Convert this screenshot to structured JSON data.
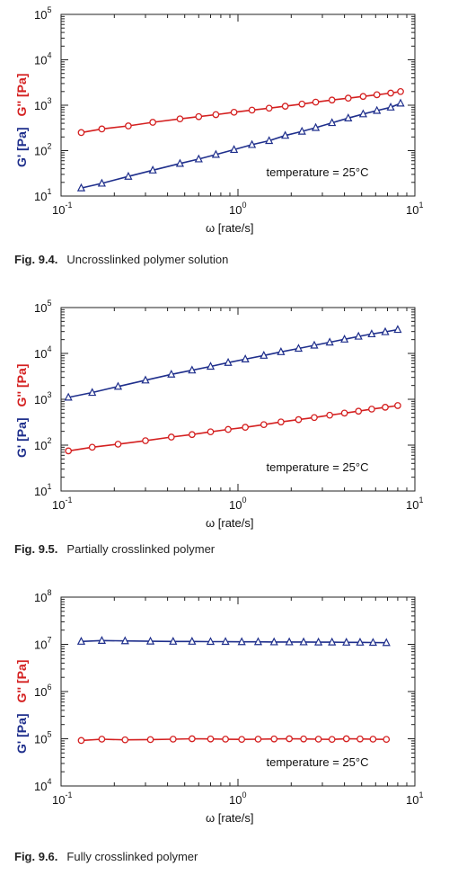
{
  "chart_data": [
    {
      "type": "line",
      "caption_label": "Fig. 9.4.",
      "caption_text": "Uncrosslinked polymer solution",
      "ylabel_g1": "G' [Pa]",
      "ylabel_g2": "G'' [Pa]",
      "xlabel": "ω  [rate/s]",
      "annotation": "temperature = 25°C",
      "x_scale": "log",
      "y_scale": "log",
      "xlim": [
        0.1,
        10
      ],
      "ylim": [
        10,
        100000
      ],
      "x_ticks": [
        {
          "base": "10",
          "exp": "-1"
        },
        {
          "base": "10",
          "exp": "0"
        },
        {
          "base": "10",
          "exp": "1"
        }
      ],
      "y_ticks": [
        {
          "base": "10",
          "exp": "1"
        },
        {
          "base": "10",
          "exp": "2"
        },
        {
          "base": "10",
          "exp": "3"
        },
        {
          "base": "10",
          "exp": "4"
        },
        {
          "base": "10",
          "exp": "5"
        }
      ],
      "series": [
        {
          "marker": "triangle",
          "color": "#1f2f8c",
          "x": [
            0.13,
            0.17,
            0.24,
            0.33,
            0.47,
            0.6,
            0.75,
            0.95,
            1.2,
            1.5,
            1.85,
            2.3,
            2.75,
            3.4,
            4.2,
            5.1,
            6.1,
            7.3,
            8.3
          ],
          "y": [
            15,
            19,
            27,
            37,
            52,
            65,
            82,
            105,
            135,
            165,
            215,
            265,
            320,
            410,
            520,
            640,
            760,
            900,
            1100
          ]
        },
        {
          "marker": "circle",
          "color": "#d42020",
          "x": [
            0.13,
            0.17,
            0.24,
            0.33,
            0.47,
            0.6,
            0.75,
            0.95,
            1.2,
            1.5,
            1.85,
            2.3,
            2.75,
            3.4,
            4.2,
            5.1,
            6.1,
            7.3,
            8.3
          ],
          "y": [
            250,
            300,
            350,
            420,
            500,
            560,
            620,
            700,
            780,
            860,
            950,
            1060,
            1170,
            1300,
            1430,
            1560,
            1700,
            1850,
            2000
          ]
        }
      ]
    },
    {
      "type": "line",
      "caption_label": "Fig. 9.5.",
      "caption_text": "Partially crosslinked polymer",
      "ylabel_g1": "G' [Pa]",
      "ylabel_g2": "G'' [Pa]",
      "xlabel": "ω  [rate/s]",
      "annotation": "temperature = 25°C",
      "x_scale": "log",
      "y_scale": "log",
      "xlim": [
        0.1,
        10
      ],
      "ylim": [
        10,
        100000
      ],
      "x_ticks": [
        {
          "base": "10",
          "exp": "-1"
        },
        {
          "base": "10",
          "exp": "0"
        },
        {
          "base": "10",
          "exp": "1"
        }
      ],
      "y_ticks": [
        {
          "base": "10",
          "exp": "1"
        },
        {
          "base": "10",
          "exp": "2"
        },
        {
          "base": "10",
          "exp": "3"
        },
        {
          "base": "10",
          "exp": "4"
        },
        {
          "base": "10",
          "exp": "5"
        }
      ],
      "series": [
        {
          "marker": "triangle",
          "color": "#1f2f8c",
          "x": [
            0.11,
            0.15,
            0.21,
            0.3,
            0.42,
            0.55,
            0.7,
            0.88,
            1.1,
            1.4,
            1.75,
            2.2,
            2.7,
            3.3,
            4.0,
            4.8,
            5.7,
            6.8,
            8.0
          ],
          "y": [
            1100,
            1400,
            1900,
            2600,
            3500,
            4300,
            5200,
            6300,
            7500,
            9000,
            10800,
            12800,
            15000,
            17500,
            20300,
            23500,
            26500,
            29500,
            33000
          ]
        },
        {
          "marker": "circle",
          "color": "#d42020",
          "x": [
            0.11,
            0.15,
            0.21,
            0.3,
            0.42,
            0.55,
            0.7,
            0.88,
            1.1,
            1.4,
            1.75,
            2.2,
            2.7,
            3.3,
            4.0,
            4.8,
            5.7,
            6.8,
            8.0
          ],
          "y": [
            75,
            90,
            105,
            125,
            150,
            170,
            195,
            220,
            245,
            280,
            320,
            360,
            400,
            450,
            500,
            550,
            610,
            670,
            730
          ]
        }
      ]
    },
    {
      "type": "line",
      "caption_label": "Fig. 9.6.",
      "caption_text": "Fully crosslinked polymer",
      "ylabel_g1": "G' [Pa]",
      "ylabel_g2": "G'' [Pa]",
      "xlabel": "ω  [rate/s]",
      "annotation": "temperature = 25°C",
      "x_scale": "log",
      "y_scale": "log",
      "xlim": [
        0.1,
        10
      ],
      "ylim": [
        10000,
        100000000
      ],
      "x_ticks": [
        {
          "base": "10",
          "exp": "-1"
        },
        {
          "base": "10",
          "exp": "0"
        },
        {
          "base": "10",
          "exp": "1"
        }
      ],
      "y_ticks": [
        {
          "base": "10",
          "exp": "4"
        },
        {
          "base": "10",
          "exp": "5"
        },
        {
          "base": "10",
          "exp": "6"
        },
        {
          "base": "10",
          "exp": "7"
        },
        {
          "base": "10",
          "exp": "8"
        }
      ],
      "series": [
        {
          "marker": "triangle",
          "color": "#1f2f8c",
          "x": [
            0.13,
            0.17,
            0.23,
            0.32,
            0.43,
            0.55,
            0.7,
            0.85,
            1.05,
            1.3,
            1.6,
            1.95,
            2.35,
            2.85,
            3.4,
            4.1,
            4.9,
            5.8,
            6.9
          ],
          "y": [
            11500000,
            12000000,
            11800000,
            11600000,
            11500000,
            11500000,
            11400000,
            11400000,
            11300000,
            11300000,
            11200000,
            11200000,
            11200000,
            11100000,
            11100000,
            11000000,
            11000000,
            10900000,
            10800000
          ]
        },
        {
          "marker": "circle",
          "color": "#d42020",
          "x": [
            0.13,
            0.17,
            0.23,
            0.32,
            0.43,
            0.55,
            0.7,
            0.85,
            1.05,
            1.3,
            1.6,
            1.95,
            2.35,
            2.85,
            3.4,
            4.1,
            4.9,
            5.8,
            6.9
          ],
          "y": [
            92000,
            98000,
            95000,
            96000,
            98000,
            100000,
            99000,
            98000,
            97000,
            98000,
            99000,
            100000,
            99000,
            98000,
            97000,
            100000,
            99000,
            98000,
            97000
          ]
        }
      ]
    }
  ]
}
